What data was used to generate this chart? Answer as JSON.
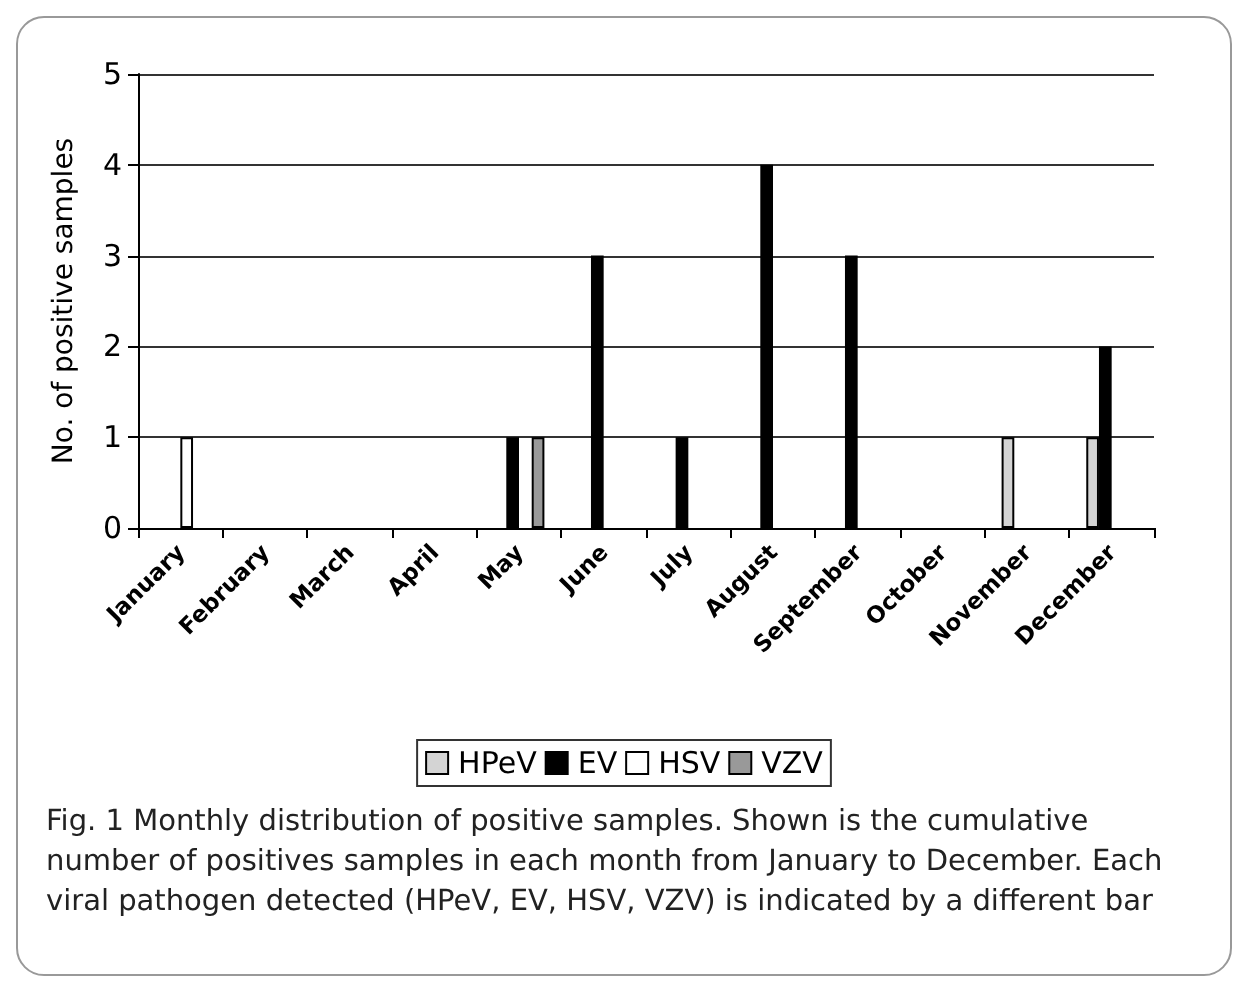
{
  "chart_data": {
    "type": "bar",
    "ylabel": "No. of positive samples",
    "categories": [
      "January",
      "February",
      "March",
      "April",
      "May",
      "June",
      "July",
      "August",
      "September",
      "October",
      "November",
      "December"
    ],
    "series": [
      {
        "name": "HPeV",
        "color": "#d4d4d4",
        "values": [
          0,
          0,
          0,
          0,
          0,
          0,
          0,
          0,
          0,
          0,
          1,
          1
        ]
      },
      {
        "name": "EV",
        "color": "#000000",
        "values": [
          0,
          0,
          0,
          0,
          1,
          3,
          1,
          4,
          3,
          0,
          0,
          2
        ]
      },
      {
        "name": "HSV",
        "color": "#ffffff",
        "values": [
          1,
          0,
          0,
          0,
          0,
          0,
          0,
          0,
          0,
          0,
          0,
          0
        ]
      },
      {
        "name": "VZV",
        "color": "#999999",
        "values": [
          0,
          0,
          0,
          0,
          1,
          0,
          0,
          0,
          0,
          0,
          0,
          0
        ]
      }
    ],
    "ylim": [
      0,
      5
    ],
    "yticks": [
      0,
      1,
      2,
      3,
      4,
      5
    ],
    "grid": "y",
    "legend": "bottom",
    "annotations": [
      "Fig. 1 Monthly distribution of positive samples. Shown is the cumulative number of positives samples in each month from January to December. Each viral pathogen detected (HPeV, EV, HSV, VZV) is indicated by a different bar"
    ]
  }
}
